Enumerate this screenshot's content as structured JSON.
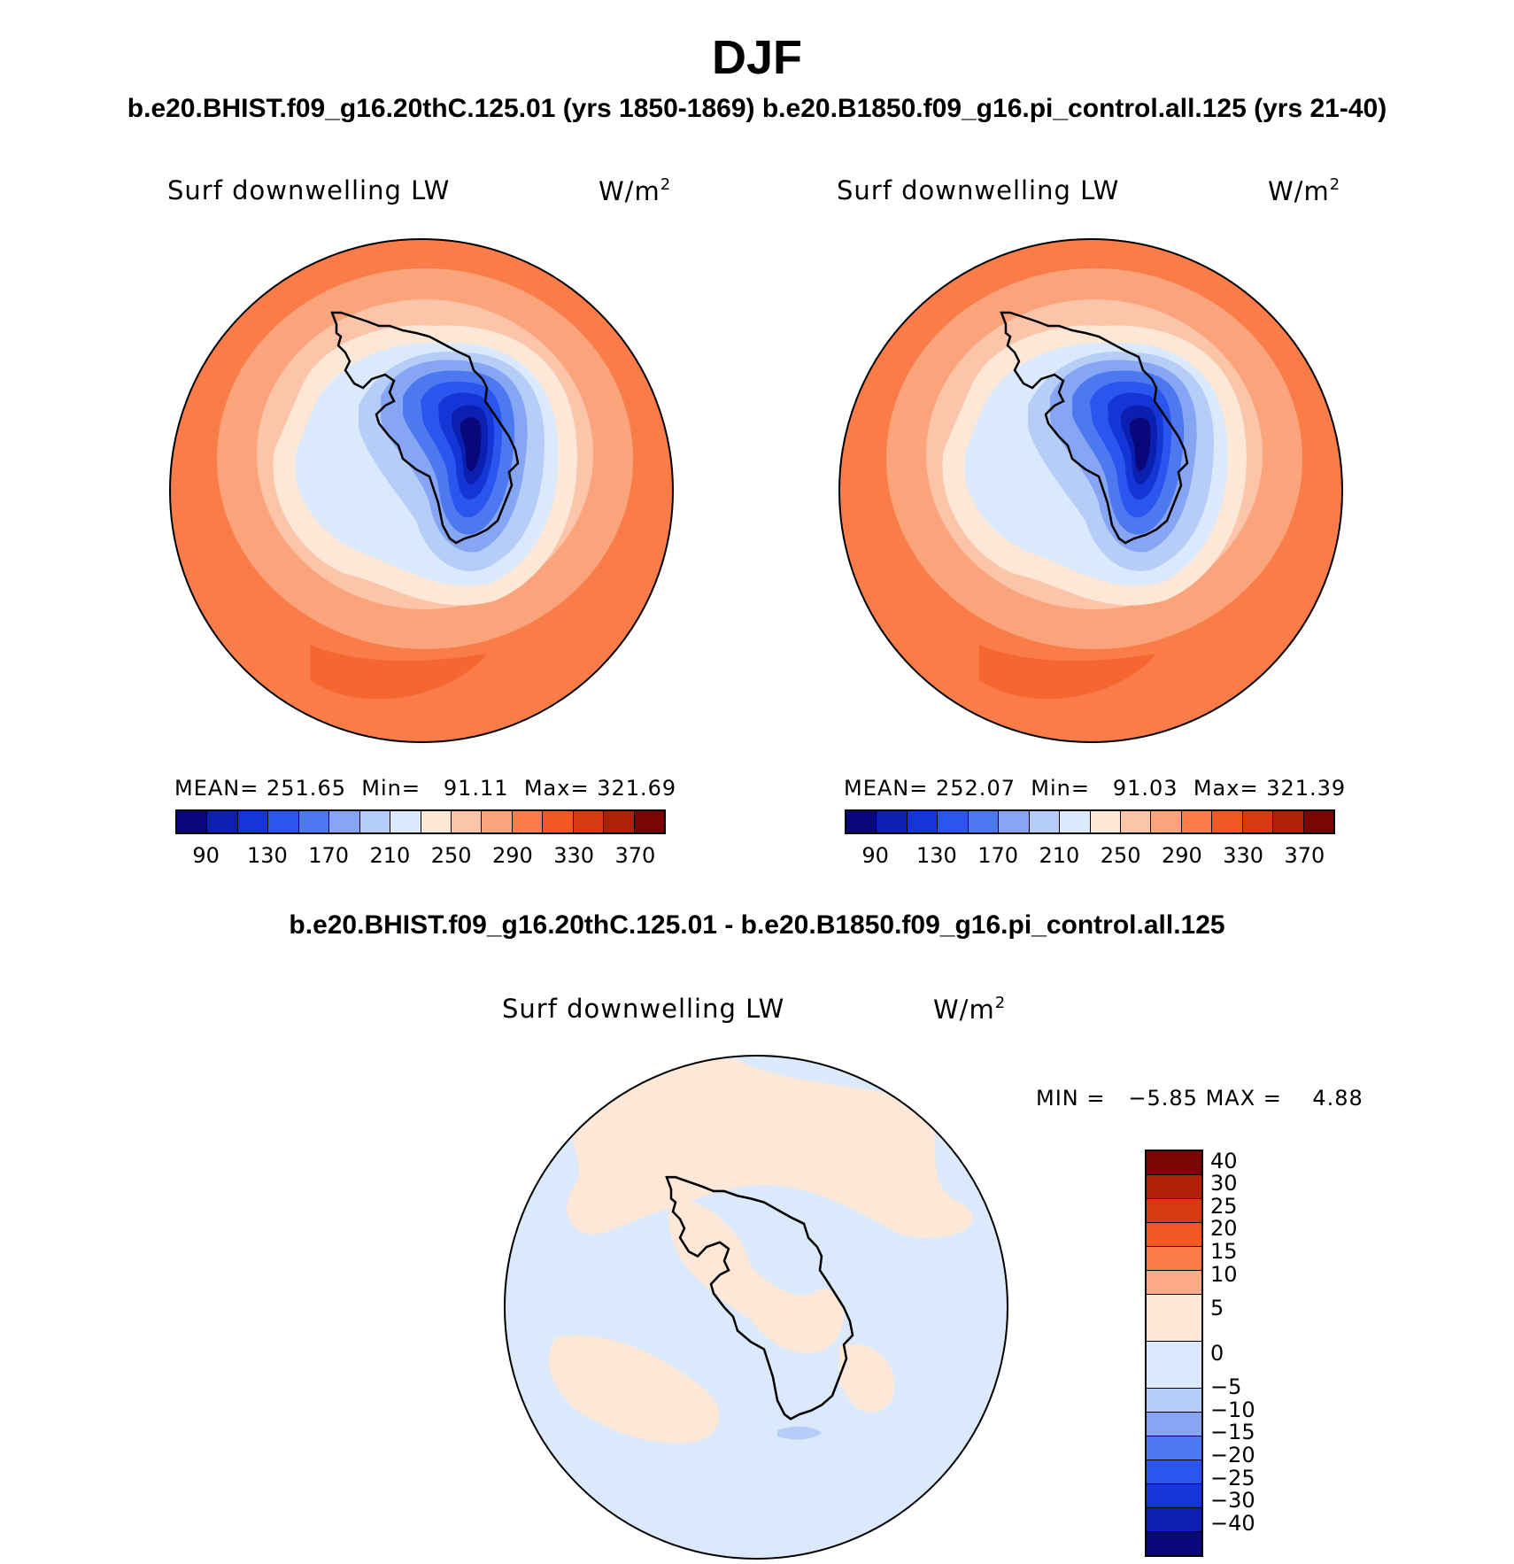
{
  "season": "DJF",
  "pair_title": "b.e20.BHIST.f09_g16.20thC.125.01 (yrs 1850-1869)  b.e20.B1850.f09_g16.pi_control.all.125 (yrs 21-40)",
  "diff_title": "b.e20.BHIST.f09_g16.20thC.125.01 - b.e20.B1850.f09_g16.pi_control.all.125",
  "panels": [
    {
      "variable": "Surf downwelling LW",
      "units_base": "W/m",
      "units_exp": "2",
      "mean_label": "MEAN=",
      "mean": "251.65",
      "min_label": "Min=",
      "min": "91.11",
      "max_label": "Max=",
      "max": "321.69"
    },
    {
      "variable": "Surf downwelling LW",
      "units_base": "W/m",
      "units_exp": "2",
      "mean_label": "MEAN=",
      "mean": "252.07",
      "min_label": "Min=",
      "min": "91.03",
      "max_label": "Max=",
      "max": "321.39"
    }
  ],
  "diff_panel": {
    "variable": "Surf downwelling LW",
    "units_base": "W/m",
    "units_exp": "2",
    "min_label": "MIN =",
    "min": "−5.85",
    "max_label": "MAX =",
    "max": "4.88"
  },
  "colors": {
    "abs_scale": [
      "#08087a",
      "#0b1fb0",
      "#1536d6",
      "#2a55ee",
      "#4d79f0",
      "#86a6f4",
      "#b6cdf8",
      "#dae9fc",
      "#fde7d6",
      "#fcc4a8",
      "#fba47c",
      "#fa7c48",
      "#f45822",
      "#d83a10",
      "#b02008",
      "#7a0606"
    ],
    "diff_scale": [
      "#7a0606",
      "#b02008",
      "#d83a10",
      "#f45822",
      "#fa7c48",
      "#fcab86",
      "#fde7d6",
      "#dae9fc",
      "#b6cdf8",
      "#86a6f4",
      "#4d79f0",
      "#2a55ee",
      "#1536d6",
      "#0b1fb0",
      "#08087a"
    ]
  },
  "chart_data": [
    {
      "type": "heatmap",
      "projection": "south-polar",
      "title": "Surf downwelling LW",
      "units": "W/m2",
      "case": "b.e20.BHIST.f09_g16.20thC.125.01 (yrs 1850-1869)",
      "mean": 251.65,
      "min": 91.11,
      "max": 321.69,
      "colorbar_levels": [
        90,
        130,
        170,
        210,
        250,
        290,
        330,
        370
      ],
      "colorbar_ticks": [
        "90",
        "130",
        "170",
        "210",
        "250",
        "290",
        "330",
        "370"
      ]
    },
    {
      "type": "heatmap",
      "projection": "south-polar",
      "title": "Surf downwelling LW",
      "units": "W/m2",
      "case": "b.e20.B1850.f09_g16.pi_control.all.125 (yrs 21-40)",
      "mean": 252.07,
      "min": 91.03,
      "max": 321.39,
      "colorbar_levels": [
        90,
        130,
        170,
        210,
        250,
        290,
        330,
        370
      ],
      "colorbar_ticks": [
        "90",
        "130",
        "170",
        "210",
        "250",
        "290",
        "330",
        "370"
      ]
    },
    {
      "type": "heatmap",
      "projection": "south-polar",
      "title": "Surf downwelling LW",
      "units": "W/m2",
      "case": "b.e20.BHIST.f09_g16.20thC.125.01 - b.e20.B1850.f09_g16.pi_control.all.125",
      "min": -5.85,
      "max": 4.88,
      "colorbar_levels": [
        40,
        30,
        25,
        20,
        15,
        10,
        5,
        0,
        -5,
        -10,
        -15,
        -20,
        -25,
        -30,
        -40
      ],
      "colorbar_ticks": [
        "40",
        "30",
        "25",
        "20",
        "15",
        "10",
        "5",
        "0",
        "−5",
        "−10",
        "−15",
        "−20",
        "−25",
        "−30",
        "−40"
      ]
    }
  ]
}
